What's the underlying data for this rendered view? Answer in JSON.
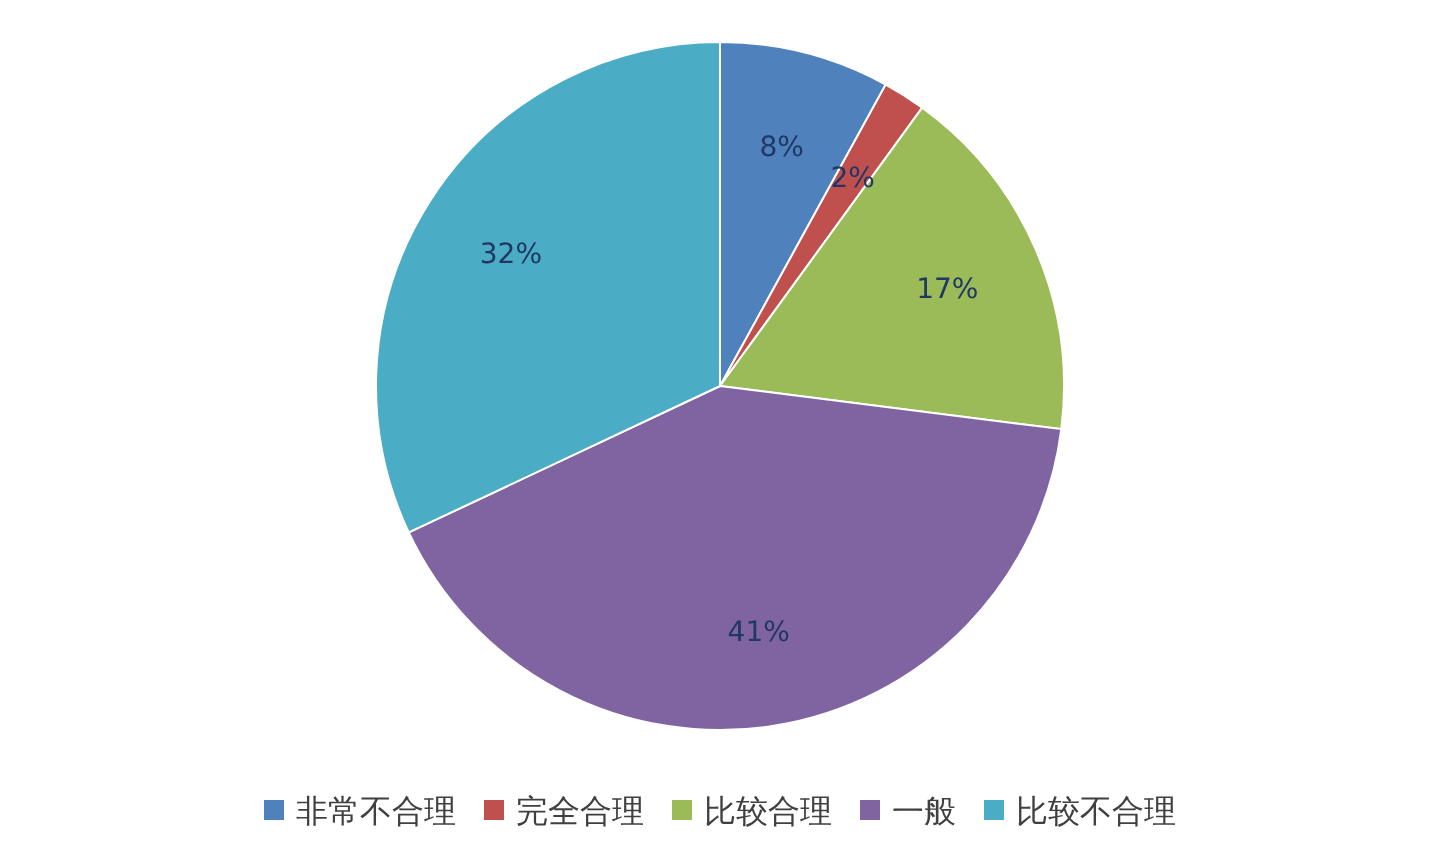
{
  "chart_data": {
    "type": "pie",
    "categories": [
      "非常不合理",
      "完全合理",
      "比较合理",
      "一般",
      "比较不合理"
    ],
    "values": [
      8,
      2,
      17,
      41,
      32
    ],
    "value_labels": [
      "8%",
      "2%",
      "17%",
      "41%",
      "32%"
    ],
    "colors": [
      "#4f81bd",
      "#c0504d",
      "#9bbb59",
      "#8064a2",
      "#4bacc6"
    ],
    "legend": "bottom"
  }
}
